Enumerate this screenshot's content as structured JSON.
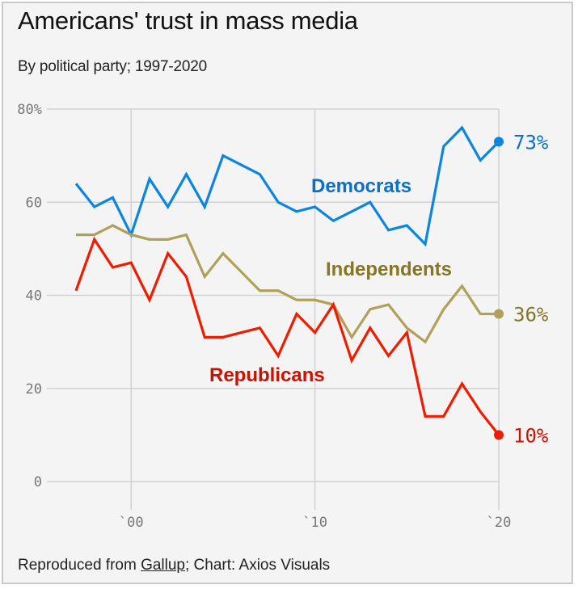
{
  "header": {
    "title": "Americans' trust in mass media",
    "subtitle": "By political party; 1997-2020"
  },
  "footer": {
    "prefix": "Reproduced from ",
    "link": "Gallup",
    "suffix": "; Chart: Axios Visuals"
  },
  "chart_data": {
    "type": "line",
    "title": "Americans' trust in mass media",
    "subtitle": "By political party; 1997-2020",
    "xlabel": "",
    "ylabel": "",
    "x": [
      1997,
      1998,
      1999,
      2000,
      2001,
      2002,
      2003,
      2004,
      2005,
      2006,
      2007,
      2008,
      2009,
      2010,
      2011,
      2012,
      2013,
      2014,
      2015,
      2016,
      2017,
      2018,
      2019,
      2020
    ],
    "xlim": [
      1997,
      2020
    ],
    "ylim": [
      0,
      80
    ],
    "grid": true,
    "yticks": [
      {
        "value": 0,
        "label": "0"
      },
      {
        "value": 20,
        "label": "20"
      },
      {
        "value": 40,
        "label": "40"
      },
      {
        "value": 60,
        "label": "60"
      },
      {
        "value": 80,
        "label": "80%"
      }
    ],
    "xticks": [
      {
        "value": 2000,
        "label": "`00"
      },
      {
        "value": 2010,
        "label": "`10"
      },
      {
        "value": 2020,
        "label": "`20"
      }
    ],
    "series": [
      {
        "name": "Democrats",
        "color": "#0a85e0",
        "label_color": "#0a6fc9",
        "end_label": "73%",
        "values": [
          64,
          59,
          61,
          53,
          65,
          59,
          66,
          59,
          70,
          68,
          66,
          60,
          58,
          59,
          56,
          58,
          60,
          54,
          55,
          51,
          72,
          76,
          69,
          73
        ]
      },
      {
        "name": "Independents",
        "color": "#b0a05a",
        "label_color": "#857527",
        "end_label": "36%",
        "values": [
          53,
          53,
          55,
          53,
          52,
          52,
          53,
          44,
          49,
          45,
          41,
          41,
          39,
          39,
          38,
          31,
          37,
          38,
          33,
          30,
          37,
          42,
          36,
          36
        ]
      },
      {
        "name": "Republicans",
        "color": "#ee1c00",
        "label_color": "#cc1100",
        "end_label": "10%",
        "values": [
          41,
          52,
          46,
          47,
          39,
          49,
          44,
          31,
          31,
          32,
          33,
          27,
          36,
          32,
          38,
          26,
          33,
          27,
          32,
          14,
          14,
          21,
          15,
          10
        ]
      }
    ]
  }
}
